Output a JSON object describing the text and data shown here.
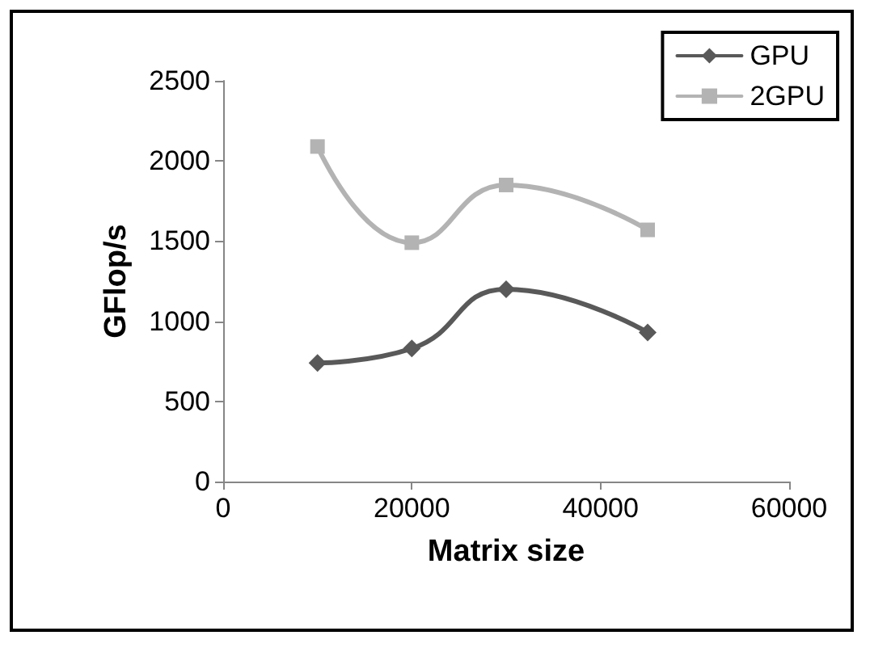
{
  "chart_data": {
    "type": "line",
    "xlabel": "Matrix size",
    "ylabel": "GFlop/s",
    "x": [
      10000,
      20000,
      30000,
      45000
    ],
    "series": [
      {
        "name": "GPU",
        "color": "#595959",
        "marker": "diamond",
        "values": [
          740,
          830,
          1200,
          930
        ]
      },
      {
        "name": "2GPU",
        "color": "#b3b3b3",
        "marker": "square",
        "values": [
          2090,
          1490,
          1850,
          1570
        ]
      }
    ],
    "xlim": [
      0,
      60000
    ],
    "xticks": [
      0,
      20000,
      40000,
      60000
    ],
    "ylim": [
      0,
      2500
    ],
    "yticks": [
      0,
      500,
      1000,
      1500,
      2000,
      2500
    ],
    "grid": false,
    "legend": "top right",
    "line_style": "solid"
  }
}
